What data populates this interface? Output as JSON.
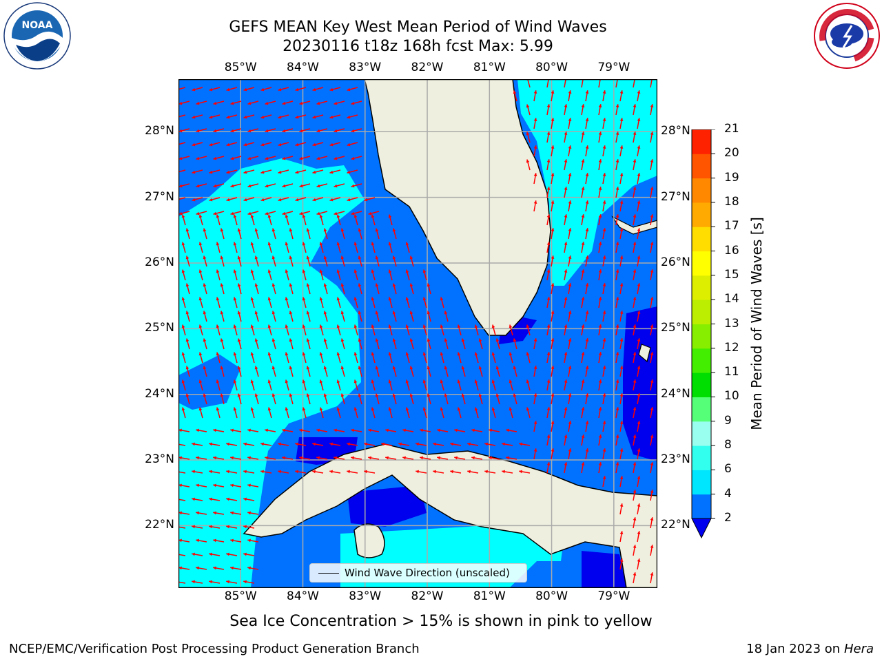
{
  "header": {
    "title_line1": "GEFS MEAN Key West Mean Period of Wind Waves",
    "title_line2": "20230116 t18z 168h fcst   Max: 5.99"
  },
  "logos": {
    "left": "noaa-logo",
    "right": "national-weather-service-logo"
  },
  "map": {
    "lon_ticks": [
      "85°W",
      "84°W",
      "83°W",
      "82°W",
      "81°W",
      "80°W",
      "79°W"
    ],
    "lat_ticks": [
      "28°N",
      "27°N",
      "26°N",
      "25°N",
      "24°N",
      "23°N",
      "22°N"
    ],
    "lon_values": [
      -85,
      -84,
      -83,
      -82,
      -81,
      -80,
      -79
    ],
    "lat_values": [
      28,
      27,
      26,
      25,
      24,
      23,
      22
    ],
    "extent": {
      "lon_min": -86,
      "lon_max": -78.3,
      "lat_min": 21.05,
      "lat_max": 28.8
    },
    "arrow_color": "#ff0000",
    "land_color": "#efefdf",
    "legend_label": "Wind Wave Direction (unscaled)"
  },
  "colorbar": {
    "label": "Mean Period of Wind Waves [s]",
    "ticks": [
      "2",
      "4",
      "6",
      "8",
      "9",
      "10",
      "11",
      "12",
      "13",
      "14",
      "15",
      "16",
      "17",
      "18",
      "19",
      "20",
      "21"
    ],
    "extend": "min",
    "colors": [
      "#0072ff",
      "#00e6ff",
      "#33ffee",
      "#66ffdd",
      "#99ffcc",
      "#55ff77",
      "#00ee00",
      "#44ee00",
      "#88ee00",
      "#ccee00",
      "#eeff00",
      "#ffee00",
      "#ffcc00",
      "#ffaa00",
      "#ff8800",
      "#ff5500",
      "#ff2200",
      "#ff0000"
    ],
    "under_color": "#0000ee"
  },
  "note": "Sea Ice Concentration > 15% is shown in pink to yellow",
  "footer": {
    "left": "NCEP/EMC/Verification Post Processing Product Generation Branch",
    "right_date": "18 Jan 2023 on",
    "right_host": "Hera"
  }
}
